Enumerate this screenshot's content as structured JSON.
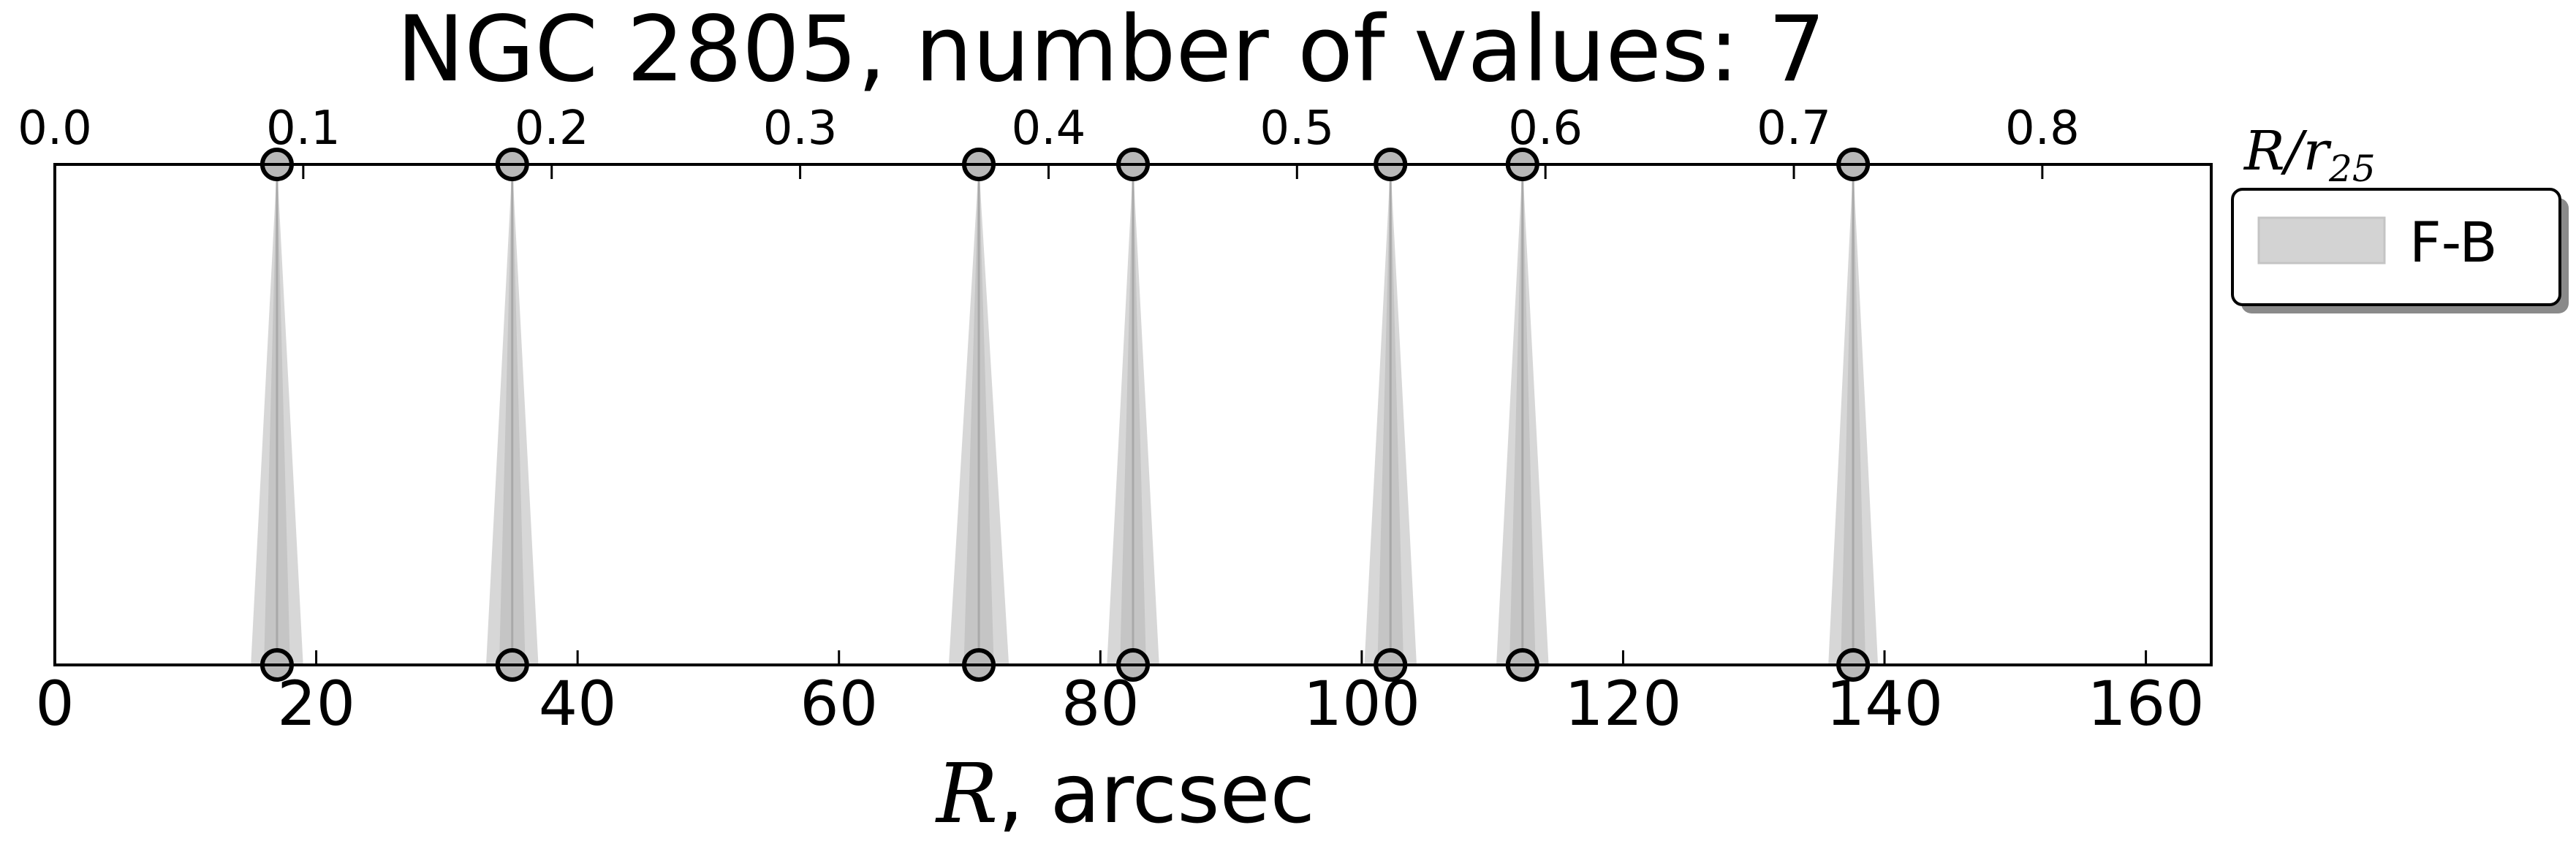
{
  "chart_data": {
    "type": "scatter",
    "title": "NGC 2805, number of values: 7",
    "xlabel_var": "R",
    "xlabel_unit": ", arcsec",
    "top_axis_var": "R/r",
    "top_axis_sub": "25",
    "xlim": [
      0,
      165
    ],
    "top_xlim": [
      0.0,
      0.868
    ],
    "x_ticks": [
      0,
      20,
      40,
      60,
      80,
      100,
      120,
      140,
      160
    ],
    "x_tick_labels": [
      "0",
      "20",
      "40",
      "60",
      "80",
      "100",
      "120",
      "140",
      "160"
    ],
    "top_ticks": [
      0.0,
      0.1,
      0.2,
      0.3,
      0.4,
      0.5,
      0.6,
      0.7,
      0.8
    ],
    "top_tick_labels": [
      "0.0",
      "0.1",
      "0.2",
      "0.3",
      "0.4",
      "0.5",
      "0.6",
      "0.7",
      "0.8"
    ],
    "grid": false,
    "legend_position": "outside-right-top",
    "series": [
      {
        "name": "F-B",
        "color": "#c0c0c0",
        "fill_color": "#d3d3d3",
        "marker_color": "#b8b8b8",
        "x": [
          17.0,
          35.0,
          70.7,
          82.5,
          102.2,
          112.3,
          137.6
        ],
        "width_arcsec": [
          2.0,
          2.0,
          2.3,
          2.0,
          2.0,
          2.0,
          1.9
        ]
      }
    ]
  }
}
